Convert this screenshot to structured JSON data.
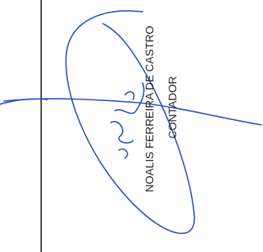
{
  "signature": {
    "name": "NOALIS FERREIRA DE CASTRO",
    "role": "CONTADOR"
  }
}
